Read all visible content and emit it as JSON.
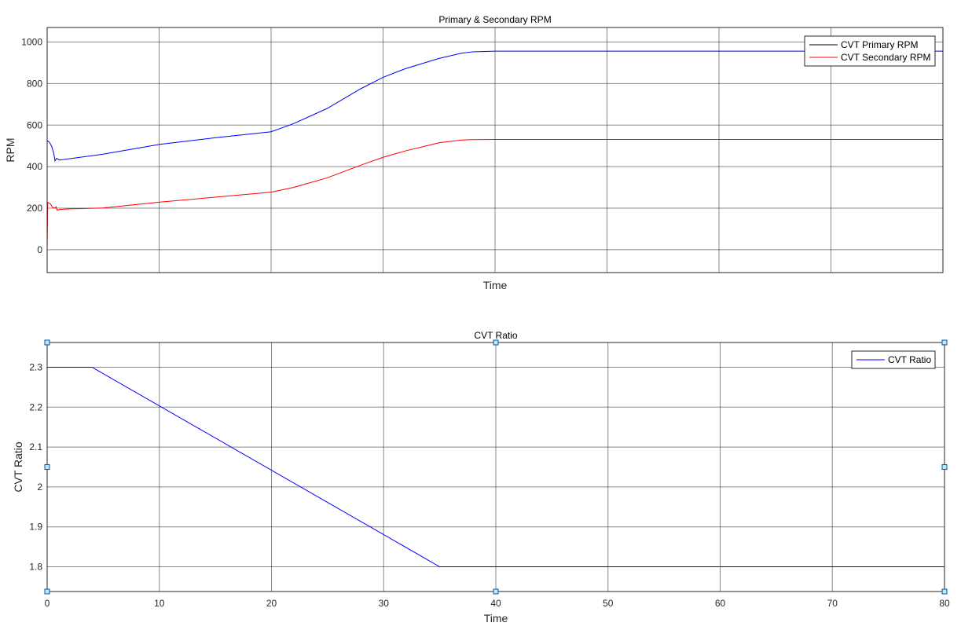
{
  "chart_data": [
    {
      "type": "line",
      "title": "Primary & Secondary RPM",
      "xlabel": "Time",
      "ylabel": "RPM",
      "xlim": [
        0,
        80
      ],
      "ylim": [
        -110,
        1070
      ],
      "xticks": [
        0,
        10,
        20,
        30,
        40,
        50,
        60,
        70,
        80
      ],
      "xtick_labels_shown": false,
      "yticks": [
        0,
        200,
        400,
        600,
        800,
        1000
      ],
      "ytick_labels": [
        "0",
        "200",
        "400",
        "600",
        "800",
        "1000"
      ],
      "grid": true,
      "legend_position": "top-right",
      "series": [
        {
          "name": "CVT Primary RPM",
          "color": "#0000ff",
          "legend_line_color": "#000000",
          "points": [
            [
              0,
              525
            ],
            [
              0.2,
              518
            ],
            [
              0.4,
              498
            ],
            [
              0.6,
              462
            ],
            [
              0.7,
              428
            ],
            [
              0.85,
              440
            ],
            [
              1.1,
              432
            ],
            [
              5,
              460
            ],
            [
              10,
              507
            ],
            [
              15,
              539
            ],
            [
              20,
              568
            ],
            [
              22,
              607
            ],
            [
              25,
              680
            ],
            [
              28,
              775
            ],
            [
              30,
              830
            ],
            [
              32,
              872
            ],
            [
              35,
              921
            ],
            [
              37,
              946
            ],
            [
              38,
              953
            ],
            [
              40,
              956
            ],
            [
              60,
              956
            ],
            [
              80,
              956
            ]
          ]
        },
        {
          "name": "CVT Secondary RPM",
          "color": "#ff0000",
          "legend_line_color": "#ff0000",
          "points": [
            [
              0,
              0
            ],
            [
              0.05,
              228
            ],
            [
              0.3,
              220
            ],
            [
              0.5,
              203
            ],
            [
              0.7,
              200
            ],
            [
              0.8,
              207
            ],
            [
              0.9,
              190
            ],
            [
              1.1,
              194
            ],
            [
              2,
              197
            ],
            [
              5,
              201
            ],
            [
              10,
              229
            ],
            [
              15,
              253
            ],
            [
              20,
              277
            ],
            [
              22,
              300
            ],
            [
              25,
              346
            ],
            [
              28,
              407
            ],
            [
              30,
              445
            ],
            [
              32,
              476
            ],
            [
              35,
              515
            ],
            [
              37,
              528
            ],
            [
              38,
              530
            ],
            [
              40,
              531
            ],
            [
              60,
              531
            ],
            [
              80,
              531
            ]
          ]
        }
      ]
    },
    {
      "type": "line",
      "title": "CVT Ratio",
      "xlabel": "Time",
      "ylabel": "CVT Ratio",
      "xlim": [
        0,
        80
      ],
      "ylim": [
        1.738,
        2.362
      ],
      "xticks": [
        0,
        10,
        20,
        30,
        40,
        50,
        60,
        70,
        80
      ],
      "xtick_labels": [
        "0",
        "10",
        "20",
        "30",
        "40",
        "50",
        "60",
        "70",
        "80"
      ],
      "yticks": [
        1.8,
        1.9,
        2.0,
        2.1,
        2.2,
        2.3
      ],
      "ytick_labels": [
        "1.8",
        "1.9",
        "2",
        "2.1",
        "2.2",
        "2.3"
      ],
      "grid": true,
      "legend_position": "top-right",
      "selected": true,
      "selection_handle_color": "#1e90ff",
      "series": [
        {
          "name": "CVT Ratio",
          "color": "#0000ff",
          "legend_line_color": "#0000ff",
          "points": [
            [
              0,
              2.3
            ],
            [
              4,
              2.3
            ],
            [
              35,
              1.8
            ],
            [
              80,
              1.8
            ]
          ]
        }
      ]
    }
  ]
}
